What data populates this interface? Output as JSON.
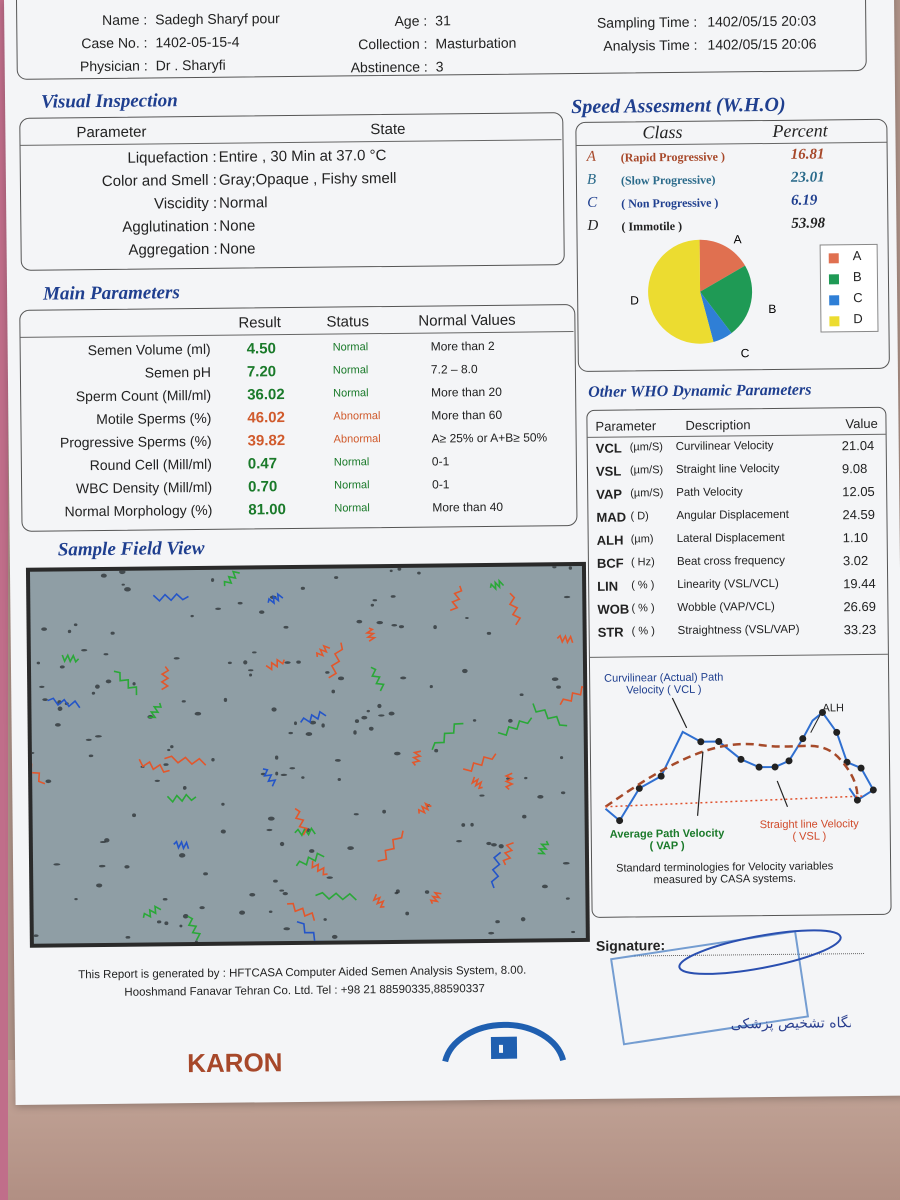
{
  "header": {
    "name_label": "Name :",
    "name": "Sadegh Sharyf pour",
    "case_label": "Case No. :",
    "case": "1402-05-15-4",
    "physician_label": "Physician :",
    "physician": "Dr . Sharyfi",
    "age_label": "Age :",
    "age": "31",
    "collection_label": "Collection :",
    "collection": "Masturbation",
    "abstinence_label": "Abstinence :",
    "abstinence": "3",
    "sampling_label": "Sampling Time :",
    "sampling": "1402/05/15 20:03",
    "analysis_label": "Analysis Time :",
    "analysis": "1402/05/15 20:06"
  },
  "visual": {
    "title": "Visual Inspection",
    "col_param": "Parameter",
    "col_state": "State",
    "rows": [
      {
        "label": "Liquefaction :",
        "value": "Entire , 30  Min at  37.0 °C"
      },
      {
        "label": "Color and Smell :",
        "value": "Gray;Opaque  ,      Fishy smell"
      },
      {
        "label": "Viscidity :",
        "value": "Normal"
      },
      {
        "label": "Agglutination :",
        "value": "None"
      },
      {
        "label": "Aggregation :",
        "value": "None"
      }
    ]
  },
  "main": {
    "title": "Main Parameters",
    "col_result": "Result",
    "col_status": "Status",
    "col_normal": "Normal Values",
    "rows": [
      {
        "label": "Semen Volume (ml)",
        "result": "4.50",
        "status": "Normal",
        "normal": "More than  2"
      },
      {
        "label": "Semen pH",
        "result": "7.20",
        "status": "Normal",
        "normal": "7.2 – 8.0"
      },
      {
        "label": "Sperm Count (Mill/ml)",
        "result": "36.02",
        "status": "Normal",
        "normal": "More than  20"
      },
      {
        "label": "Motile Sperms (%)",
        "result": "46.02",
        "status": "Abnormal",
        "normal": "More than 60"
      },
      {
        "label": "Progressive Sperms (%)",
        "result": "39.82",
        "status": "Abnormal",
        "normal": "A≥ 25% or A+B≥ 50%"
      },
      {
        "label": "Round Cell (Mill/ml)",
        "result": "0.47",
        "status": "Normal",
        "normal": "0-1"
      },
      {
        "label": "WBC Density (Mill/ml)",
        "result": "0.70",
        "status": "Normal",
        "normal": "0-1"
      },
      {
        "label": "Normal Morphology (%)",
        "result": "81.00",
        "status": "Normal",
        "normal": "More than  40"
      }
    ]
  },
  "speed": {
    "title": "Speed Assesment (W.H.O)",
    "col_class": "Class",
    "col_percent": "Percent",
    "rows": [
      {
        "letter": "A",
        "name": "(Rapid Progressive )",
        "percent": "16.81"
      },
      {
        "letter": "B",
        "name": "(Slow Progressive)",
        "percent": "23.01"
      },
      {
        "letter": "C",
        "name": "( Non Progressive )",
        "percent": "6.19"
      },
      {
        "letter": "D",
        "name": "( Immotile )",
        "percent": "53.98"
      }
    ],
    "legend": [
      "A",
      "B",
      "C",
      "D"
    ],
    "colors": {
      "A": "#e07050",
      "B": "#1f9a55",
      "C": "#2f7fd6",
      "D": "#ecdc30"
    }
  },
  "chart_data": {
    "type": "pie",
    "categories": [
      "A",
      "B",
      "C",
      "D"
    ],
    "values": [
      16.81,
      23.01,
      6.19,
      53.98
    ],
    "legend_position": "right"
  },
  "other": {
    "title": "Other WHO Dynamic Parameters",
    "col_param": "Parameter",
    "col_desc": "Description",
    "col_value": "Value",
    "rows": [
      {
        "code": "VCL",
        "unit": "(µm/S)",
        "desc": "Curvilinear Velocity",
        "value": "21.04"
      },
      {
        "code": "VSL",
        "unit": "(µm/S)",
        "desc": "Straight line Velocity",
        "value": "9.08"
      },
      {
        "code": "VAP",
        "unit": "(µm/S)",
        "desc": "Path Velocity",
        "value": "12.05"
      },
      {
        "code": "MAD",
        "unit": "( D)",
        "desc": "Angular Displacement",
        "value": "24.59"
      },
      {
        "code": "ALH",
        "unit": "(µm)",
        "desc": "Lateral Displacement",
        "value": "1.10"
      },
      {
        "code": "BCF",
        "unit": "( Hz)",
        "desc": "Beat cross frequency",
        "value": "3.02"
      },
      {
        "code": "LIN",
        "unit": "( % )",
        "desc": "Linearity (VSL/VCL)",
        "value": "19.44"
      },
      {
        "code": "WOB",
        "unit": "( % )",
        "desc": "Wobble  (VAP/VCL)",
        "value": "26.69"
      },
      {
        "code": "STR",
        "unit": "( % )",
        "desc": "Straightness (VSL/VAP)",
        "value": "33.23"
      }
    ]
  },
  "diagram": {
    "vcl_label": "Curvilinear (Actual) Path\nVelocity ( VCL )",
    "alh_label": "ALH",
    "vap_label": "Average Path Velocity\n( VAP )",
    "vsl_label": "Straight line Velocity\n( VSL )",
    "caption": "Standard terminologies for Velocity variables\nmeasured by CASA systems."
  },
  "field": {
    "title": "Sample Field View"
  },
  "footer": {
    "signature_label": "Signature:",
    "generated": "This Report is generated by : HFTCASA Computer Aided Semen Analysis System, 8.00.",
    "company": "Hooshmand Fanavar Tehran Co. Ltd.     Tel : +98 21 88590335,88590337",
    "brand": "KARON",
    "stamp_text": "آزمایشگاه تشخیص پزشکی"
  }
}
